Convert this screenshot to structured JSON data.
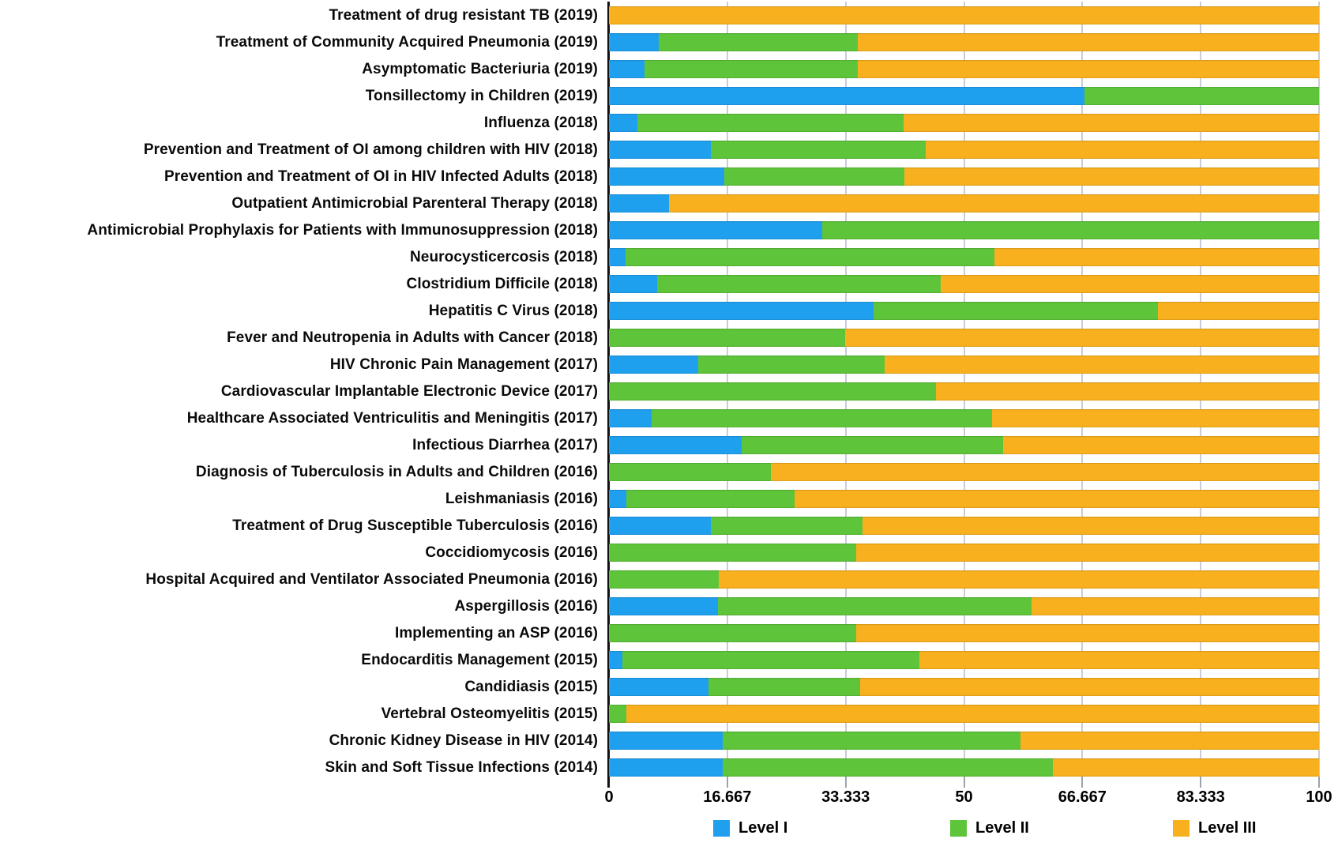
{
  "chart_data": {
    "type": "bar",
    "orientation": "horizontal",
    "stacked": true,
    "title": "",
    "xlabel": "",
    "ylabel": "",
    "xlim": [
      0,
      100
    ],
    "xticks": [
      "0",
      "16.667",
      "33.333",
      "50",
      "66.667",
      "83.333",
      "100"
    ],
    "xtick_values": [
      0,
      16.667,
      33.333,
      50,
      66.667,
      83.333,
      100
    ],
    "grid": true,
    "legend_position": "bottom",
    "categories": [
      "Treatment of drug resistant TB (2019)",
      "Treatment of Community Acquired Pneumonia (2019)",
      "Asymptomatic Bacteriuria (2019)",
      "Tonsillectomy in Children (2019)",
      "Influenza (2018)",
      "Prevention and Treatment of OI among children with HIV (2018)",
      "Prevention and Treatment of OI in HIV Infected Adults (2018)",
      "Outpatient Antimicrobial Parenteral Therapy (2018)",
      "Antimicrobial Prophylaxis for Patients with Immunosuppression (2018)",
      "Neurocysticercosis (2018)",
      "Clostridium Difficile (2018)",
      "Hepatitis C Virus (2018)",
      "Fever and Neutropenia in Adults with Cancer (2018)",
      "HIV Chronic Pain Management (2017)",
      "Cardiovascular Implantable Electronic Device (2017)",
      "Healthcare Associated Ventriculitis and Meningitis (2017)",
      "Infectious Diarrhea (2017)",
      "Diagnosis of Tuberculosis in Adults and Children (2016)",
      "Leishmaniasis (2016)",
      "Treatment of Drug Susceptible Tuberculosis (2016)",
      "Coccidiomycosis (2016)",
      "Hospital Acquired and Ventilator Associated Pneumonia (2016)",
      "Aspergillosis (2016)",
      "Implementing an ASP (2016)",
      "Endocarditis Management (2015)",
      "Candidiasis (2015)",
      "Vertebral Osteomyelitis (2015)",
      "Chronic Kidney Disease in HIV (2014)",
      "Skin and Soft Tissue Infections (2014)"
    ],
    "series": [
      {
        "name": "Level I",
        "color": "#1FA0EF",
        "values": [
          0,
          7,
          5,
          67,
          4,
          14.3,
          16.2,
          8.4,
          30,
          2.3,
          6.8,
          37.3,
          0,
          12.6,
          0,
          6,
          18.7,
          0,
          2.5,
          14.4,
          0,
          0,
          15.3,
          0,
          1.9,
          14,
          0,
          16,
          16
        ]
      },
      {
        "name": "Level II",
        "color": "#5EC43A",
        "values": [
          0,
          28,
          30,
          33,
          37.5,
          30.3,
          25.4,
          0,
          70,
          52,
          39.9,
          40,
          33.3,
          26.2,
          46,
          48,
          36.8,
          22.8,
          23.6,
          21.3,
          34.8,
          15.5,
          44.2,
          34.8,
          41.8,
          21.4,
          2.5,
          42,
          46.5
        ]
      },
      {
        "name": "Level III",
        "color": "#F8B01E",
        "values": [
          100,
          65,
          65,
          0,
          58.5,
          55.4,
          58.4,
          91.6,
          0,
          45.7,
          53.3,
          22.7,
          66.7,
          61.2,
          54,
          46,
          44.5,
          77.2,
          73.9,
          64.3,
          65.2,
          84.5,
          40.5,
          65.2,
          56.3,
          64.6,
          97.5,
          42,
          37.5
        ]
      }
    ],
    "colors": {
      "gridline": "#c7cdd9",
      "axis": "#111111",
      "tick": "#9ba3af",
      "text": "#000000"
    }
  }
}
